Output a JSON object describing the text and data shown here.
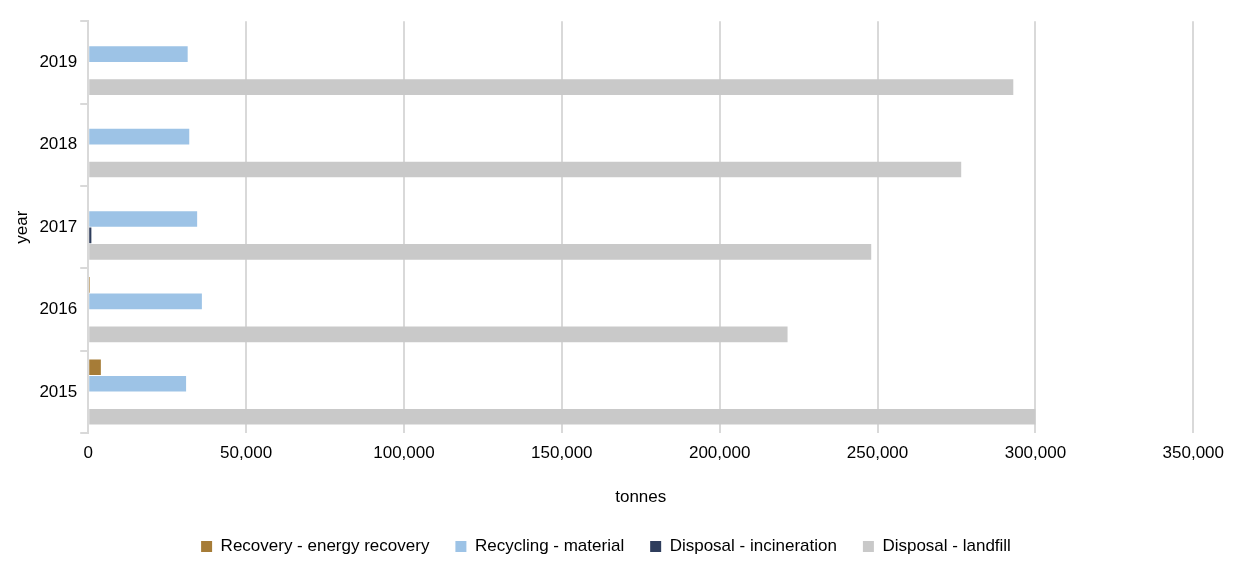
{
  "chart_data": {
    "type": "bar",
    "orientation": "horizontal",
    "xlabel": "tonnes",
    "ylabel": "year",
    "categories": [
      "2019",
      "2018",
      "2017",
      "2016",
      "2015"
    ],
    "series": [
      {
        "name": "Recovery - energy recovery",
        "color": "#a67c37",
        "values": [
          null,
          null,
          null,
          500,
          4000
        ]
      },
      {
        "name": "Recycling - material",
        "color": "#9dc3e6",
        "values": [
          31500,
          32000,
          34500,
          36000,
          31000
        ]
      },
      {
        "name": "Disposal - incineration",
        "color": "#2e3d5c",
        "values": [
          null,
          null,
          1000,
          null,
          null
        ]
      },
      {
        "name": "Disposal - landfill",
        "color": "#c9c9c9",
        "values": [
          293000,
          276500,
          248000,
          221500,
          300000
        ]
      }
    ],
    "xlim": [
      0,
      350000
    ],
    "xticks": [
      0,
      {
        "value": 50000,
        "label": "50,000"
      },
      {
        "value": 100000,
        "label": "100,000"
      },
      {
        "value": 150000,
        "label": "150,000"
      },
      {
        "value": 200000,
        "label": "200,000"
      },
      {
        "value": 250000,
        "label": "250,000"
      },
      {
        "value": 300000,
        "label": "300,000"
      },
      {
        "value": 350000,
        "label": "350,000"
      }
    ],
    "grid": "x",
    "legend": "bottom"
  }
}
